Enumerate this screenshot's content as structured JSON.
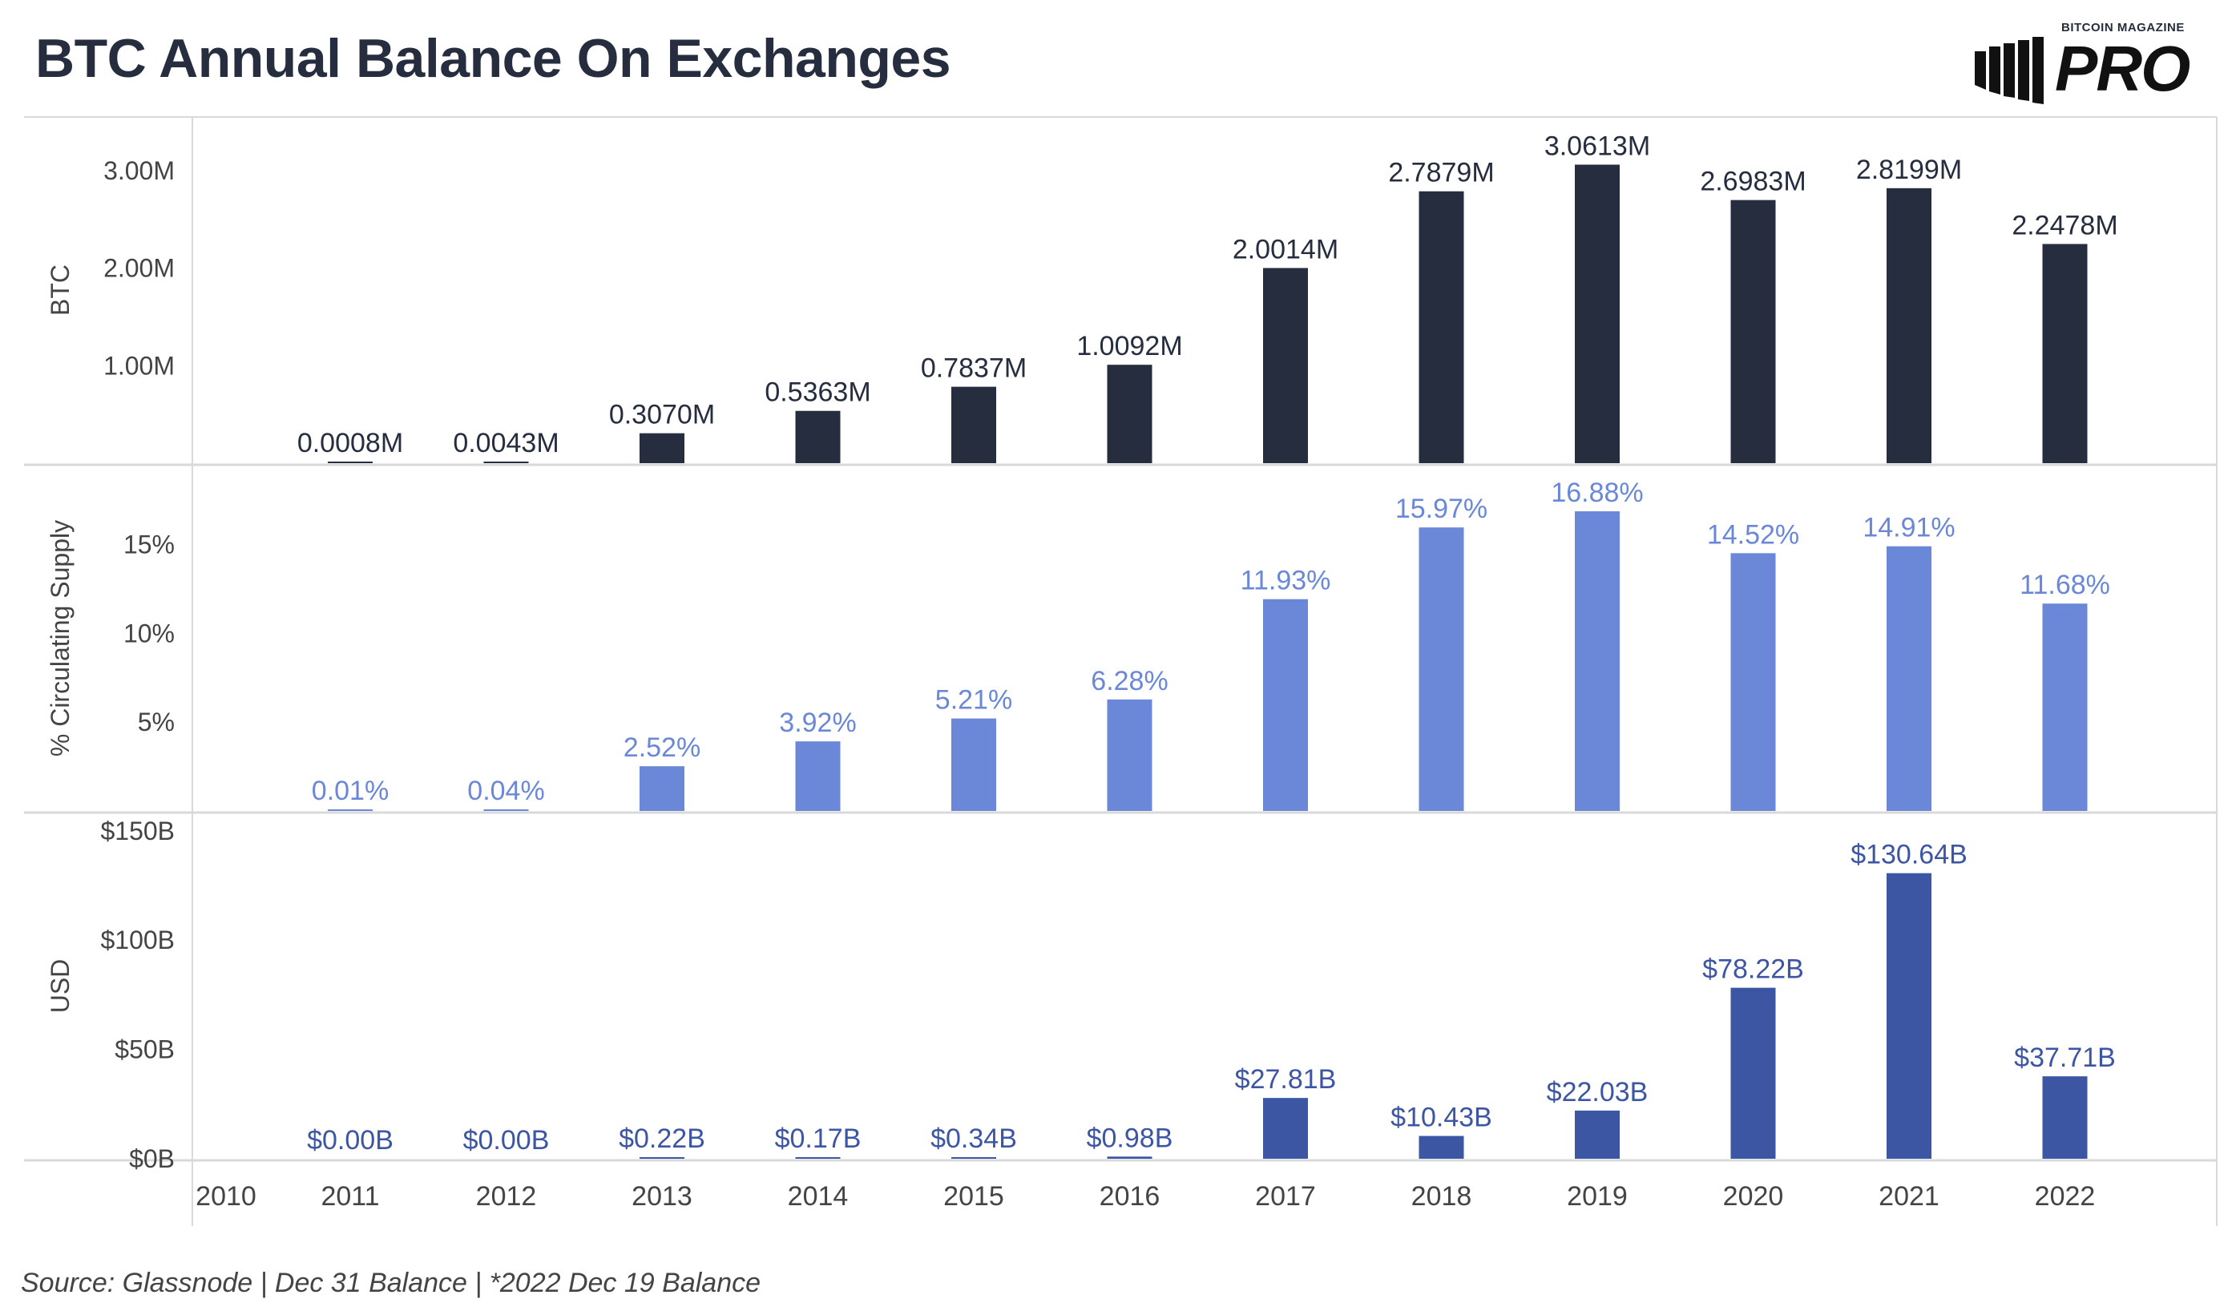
{
  "title": "BTC Annual Balance On Exchanges",
  "logo": {
    "small_text": "BITCOIN MAGAZINE",
    "big_text": "PRO"
  },
  "footer": "Source: Glassnode | Dec 31 Balance | *2022 Dec 19 Balance",
  "colors": {
    "btc": "#252d3f",
    "pct": "#6b88d8",
    "pct_label": "#6b88d8",
    "usd": "#3d56a3",
    "usd_label": "#3d56a3",
    "grid": "#d9d9d9",
    "text": "#444444"
  },
  "chart_data": {
    "type": "bar",
    "title": "BTC Annual Balance On Exchanges",
    "x_ticks": [
      "2010",
      "2011",
      "2012",
      "2013",
      "2014",
      "2015",
      "2016",
      "2017",
      "2018",
      "2019",
      "2020",
      "2021",
      "2022"
    ],
    "categories": [
      "2011",
      "2012",
      "2013",
      "2014",
      "2015",
      "2016",
      "2017",
      "2018",
      "2019",
      "2020",
      "2021",
      "2022"
    ],
    "panels": [
      {
        "name": "btc",
        "ylabel": "BTC",
        "ylim": [
          0,
          3.55
        ],
        "yticks": [
          1,
          2,
          3
        ],
        "ytick_labels": [
          "1.00M",
          "2.00M",
          "3.00M"
        ],
        "values": [
          0.0008,
          0.0043,
          0.307,
          0.5363,
          0.7837,
          1.0092,
          2.0014,
          2.7879,
          3.0613,
          2.6983,
          2.8199,
          2.2478
        ],
        "labels": [
          "0.0008M",
          "0.0043M",
          "0.3070M",
          "0.5363M",
          "0.7837M",
          "1.0092M",
          "2.0014M",
          "2.7879M",
          "3.0613M",
          "2.6983M",
          "2.8199M",
          "2.2478M"
        ]
      },
      {
        "name": "pct",
        "ylabel": "% Circulating Supply",
        "ylim": [
          0,
          19.5
        ],
        "yticks": [
          5,
          10,
          15
        ],
        "ytick_labels": [
          "5%",
          "10%",
          "15%"
        ],
        "values": [
          0.01,
          0.04,
          2.52,
          3.92,
          5.21,
          6.28,
          11.93,
          15.97,
          16.88,
          14.52,
          14.91,
          11.68
        ],
        "labels": [
          "0.01%",
          "0.04%",
          "2.52%",
          "3.92%",
          "5.21%",
          "6.28%",
          "11.93%",
          "15.97%",
          "16.88%",
          "14.52%",
          "14.91%",
          "11.68%"
        ]
      },
      {
        "name": "usd",
        "ylabel": "USD",
        "ylim": [
          0,
          158
        ],
        "yticks": [
          0,
          50,
          100,
          150
        ],
        "ytick_labels": [
          "$0B",
          "$50B",
          "$100B",
          "$150B"
        ],
        "values": [
          0.0,
          0.0,
          0.22,
          0.17,
          0.34,
          0.98,
          27.81,
          10.43,
          22.03,
          78.22,
          130.64,
          37.71
        ],
        "labels": [
          "$0.00B",
          "$0.00B",
          "$0.22B",
          "$0.17B",
          "$0.34B",
          "$0.98B",
          "$27.81B",
          "$10.43B",
          "$22.03B",
          "$78.22B",
          "$130.64B",
          "$37.71B"
        ]
      }
    ]
  }
}
